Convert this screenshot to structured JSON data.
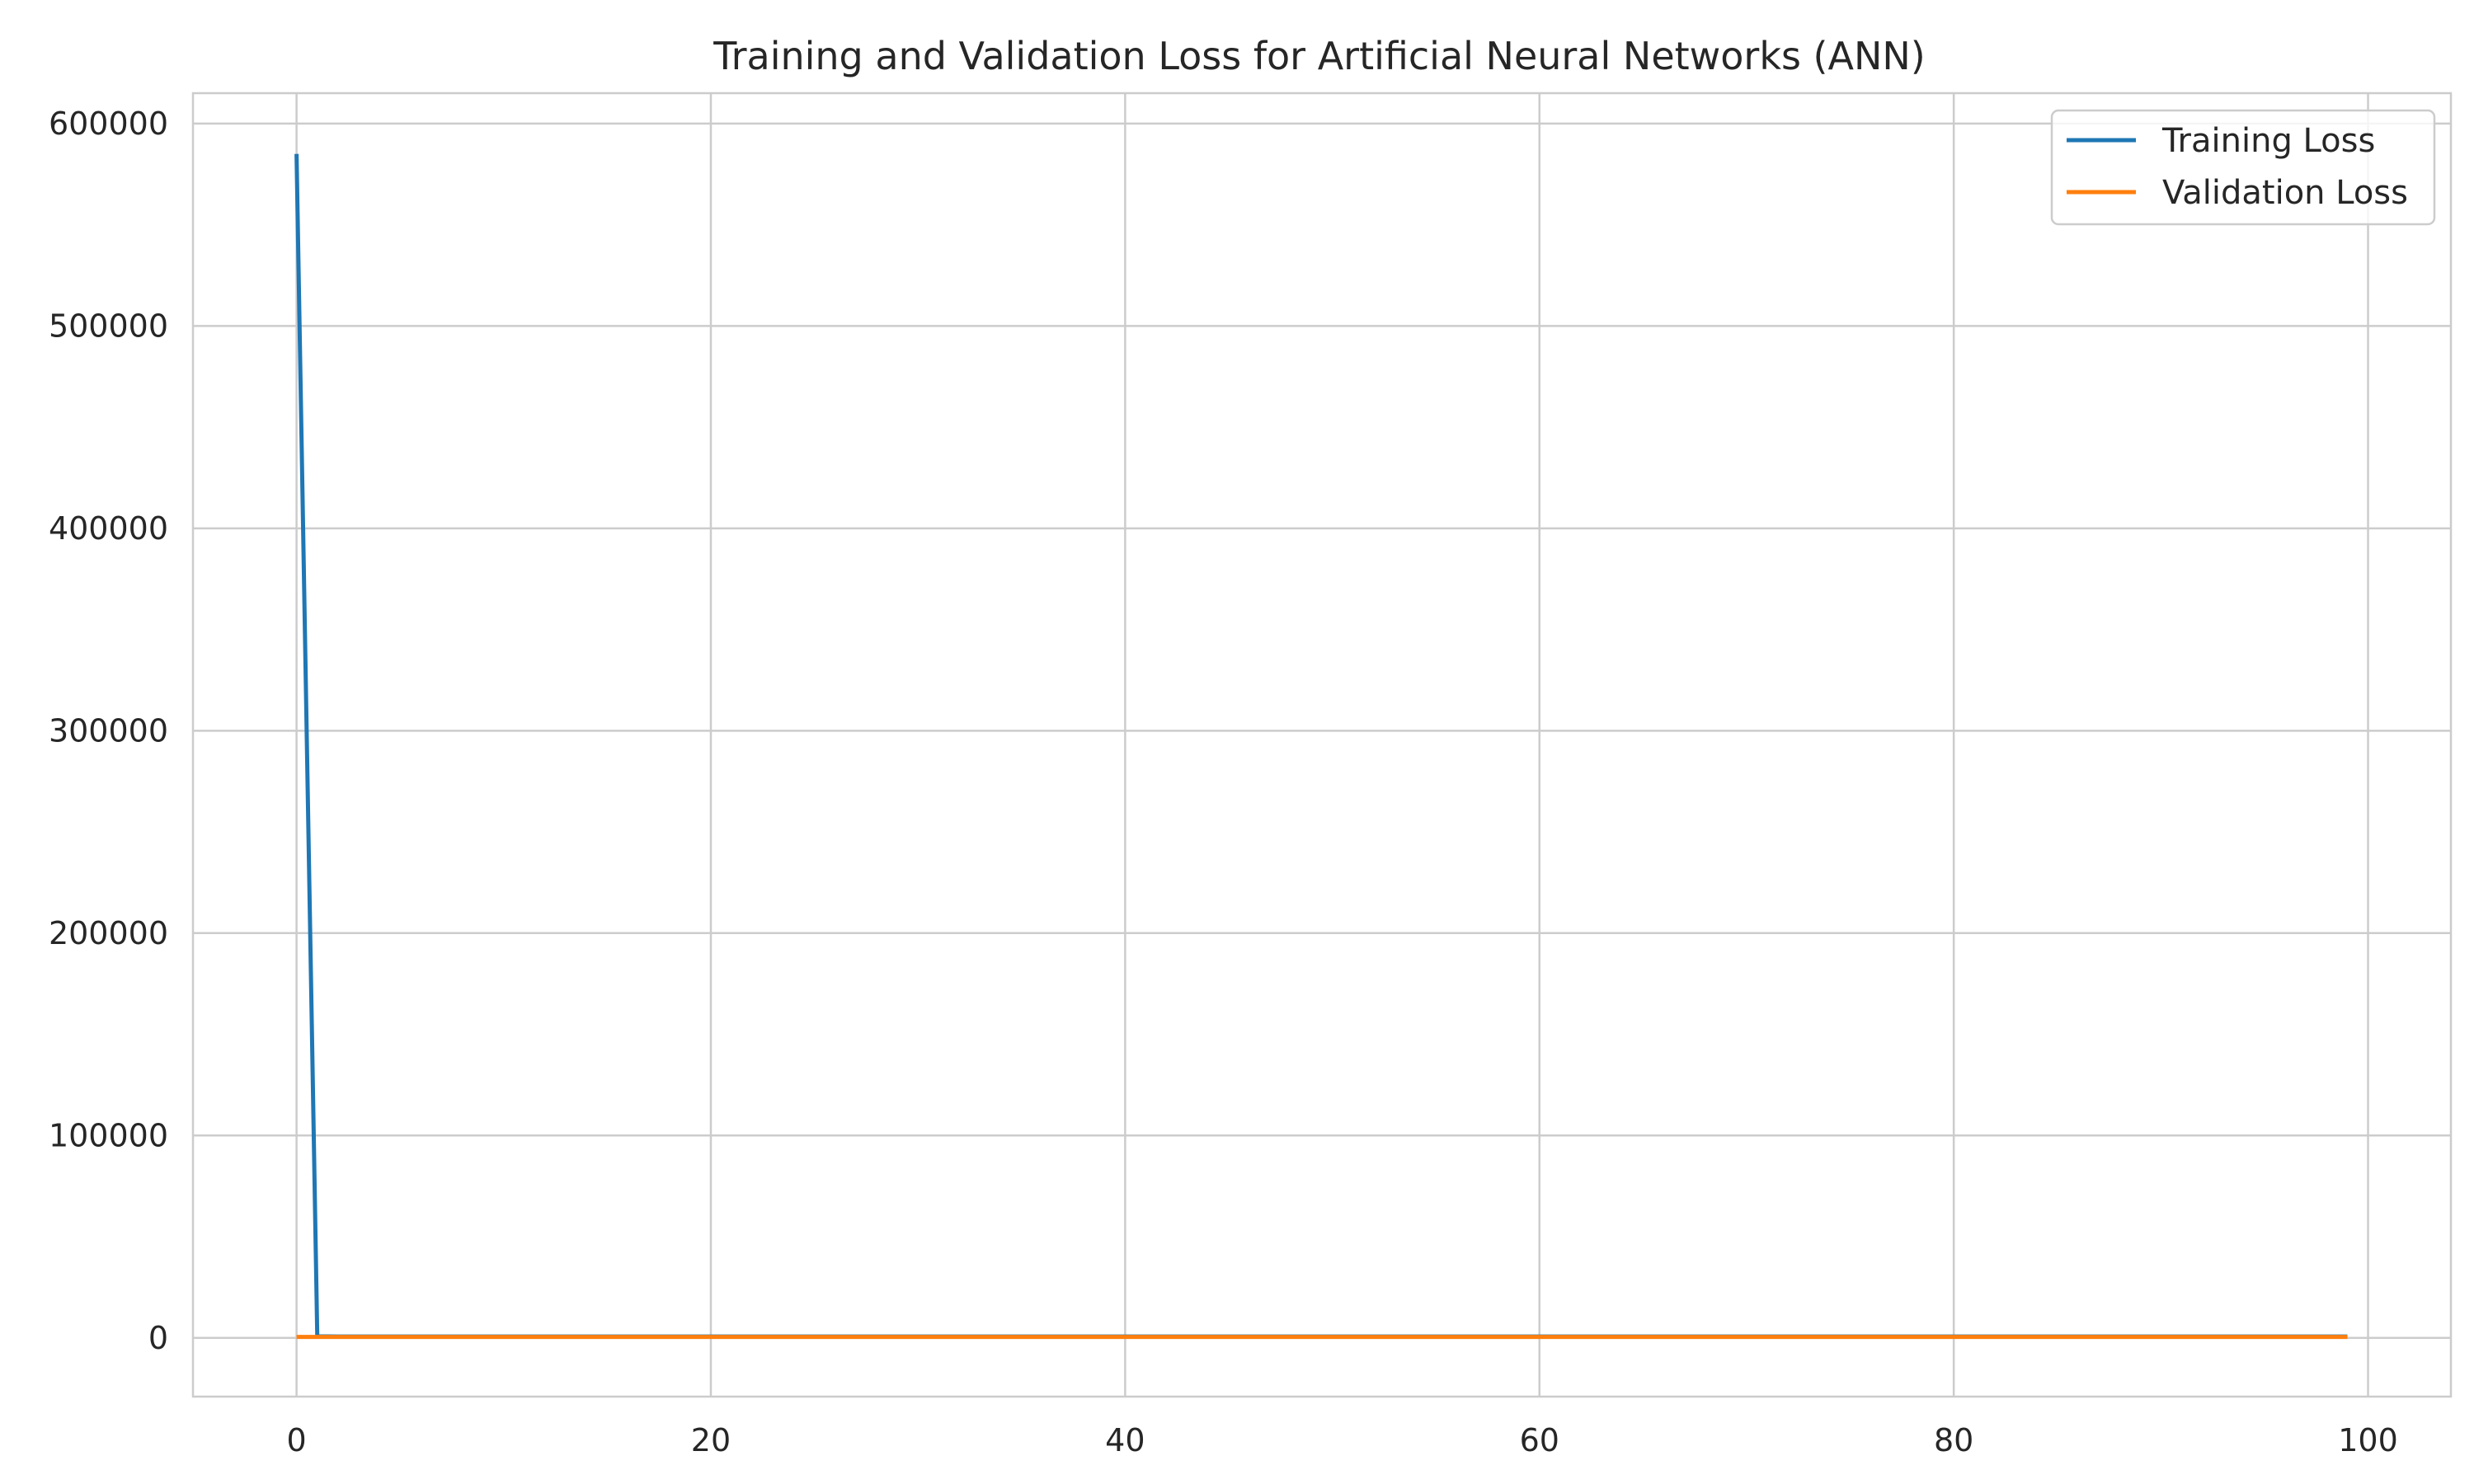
{
  "chart_data": {
    "type": "line",
    "title": "Training and Validation Loss for Artificial Neural Networks (ANN)",
    "xlabel": "",
    "ylabel": "",
    "xlim": [
      -5,
      104
    ],
    "ylim": [
      -29000,
      615000
    ],
    "x_ticks": [
      0,
      20,
      40,
      60,
      80,
      100
    ],
    "x_tick_labels": [
      "0",
      "20",
      "40",
      "60",
      "80",
      "100"
    ],
    "y_ticks": [
      0,
      100000,
      200000,
      300000,
      400000,
      500000,
      600000
    ],
    "y_tick_labels": [
      "0",
      "100000",
      "200000",
      "300000",
      "400000",
      "500000",
      "600000"
    ],
    "grid": true,
    "legend_position": "top-right",
    "x_start": 0,
    "x_end": 99,
    "series": [
      {
        "name": "Training Loss",
        "color": "#1f77b4",
        "head": [
          585000,
          800
        ],
        "tail_value": 700
      },
      {
        "name": "Validation Loss",
        "color": "#ff7f0e",
        "head": [],
        "tail_value": 500
      }
    ]
  }
}
